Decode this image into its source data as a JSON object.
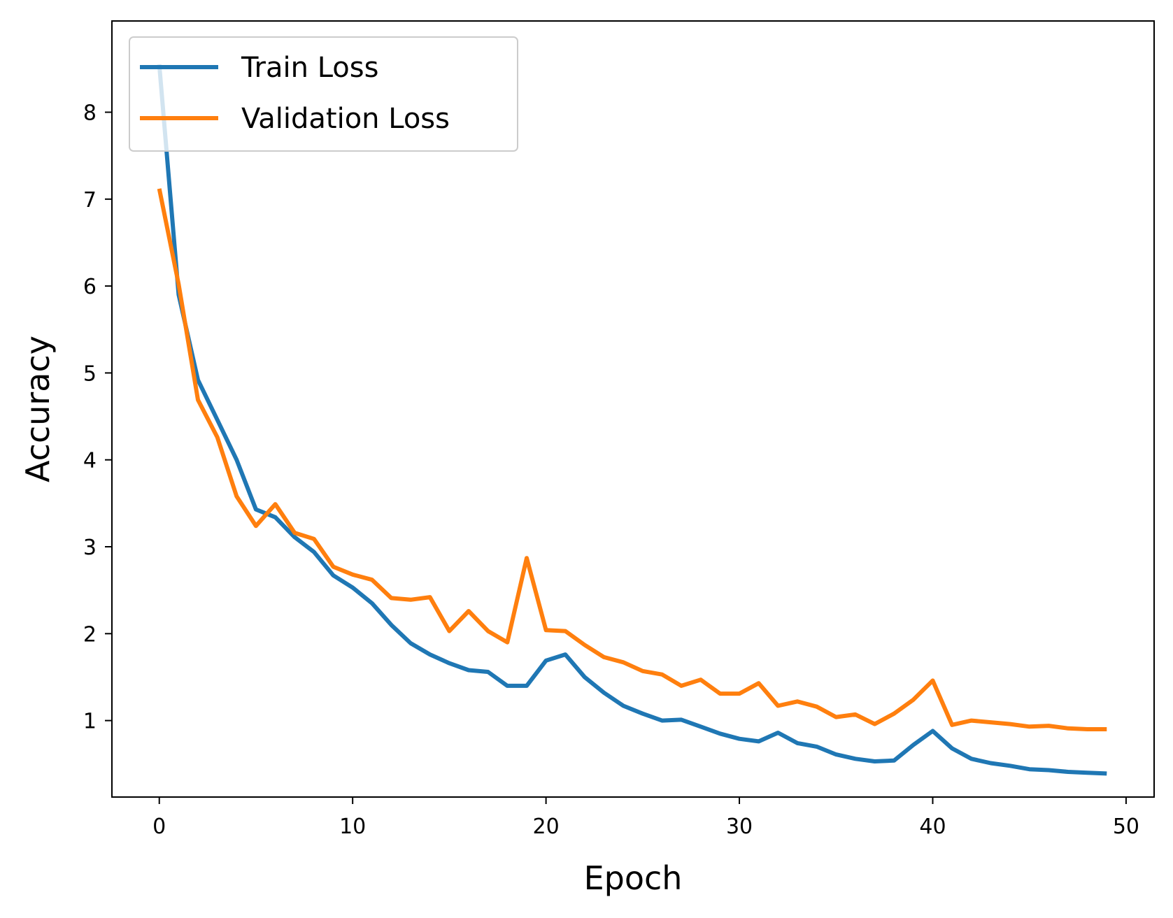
{
  "chart_data": {
    "type": "line",
    "title": "",
    "xlabel": "Epoch",
    "ylabel": "Accuracy",
    "xlim": [
      -2.45,
      51.45
    ],
    "ylim": [
      0.12,
      9.05
    ],
    "xticks": [
      0,
      10,
      20,
      30,
      40,
      50
    ],
    "xtick_labels": [
      "0",
      "10",
      "20",
      "30",
      "40",
      "50"
    ],
    "yticks": [
      1,
      2,
      3,
      4,
      5,
      6,
      7,
      8
    ],
    "ytick_labels": [
      "1",
      "2",
      "3",
      "4",
      "5",
      "6",
      "7",
      "8"
    ],
    "grid": false,
    "legend_position": "upper-left",
    "x": [
      0,
      1,
      2,
      3,
      4,
      5,
      6,
      7,
      8,
      9,
      10,
      11,
      12,
      13,
      14,
      15,
      16,
      17,
      18,
      19,
      20,
      21,
      22,
      23,
      24,
      25,
      26,
      27,
      28,
      29,
      30,
      31,
      32,
      33,
      34,
      35,
      36,
      37,
      38,
      39,
      40,
      41,
      42,
      43,
      44,
      45,
      46,
      47,
      48,
      49
    ],
    "series": [
      {
        "name": "Train Loss",
        "color": "#1f77b4",
        "values": [
          8.55,
          5.9,
          4.92,
          4.46,
          4.0,
          3.43,
          3.34,
          3.11,
          2.94,
          2.67,
          2.53,
          2.35,
          2.1,
          1.89,
          1.76,
          1.66,
          1.58,
          1.56,
          1.4,
          1.4,
          1.69,
          1.76,
          1.5,
          1.32,
          1.17,
          1.08,
          1.0,
          1.01,
          0.93,
          0.85,
          0.79,
          0.76,
          0.86,
          0.74,
          0.7,
          0.61,
          0.56,
          0.53,
          0.54,
          0.72,
          0.88,
          0.68,
          0.56,
          0.51,
          0.48,
          0.44,
          0.43,
          0.41,
          0.4,
          0.39
        ]
      },
      {
        "name": "Validation Loss",
        "color": "#ff7f0e",
        "values": [
          7.12,
          6.02,
          4.69,
          4.26,
          3.58,
          3.24,
          3.49,
          3.16,
          3.09,
          2.77,
          2.68,
          2.62,
          2.41,
          2.39,
          2.42,
          2.03,
          2.26,
          2.03,
          1.9,
          2.87,
          2.04,
          2.03,
          1.87,
          1.73,
          1.67,
          1.57,
          1.53,
          1.4,
          1.47,
          1.31,
          1.31,
          1.43,
          1.17,
          1.22,
          1.16,
          1.04,
          1.07,
          0.96,
          1.08,
          1.24,
          1.46,
          0.95,
          1.0,
          0.98,
          0.96,
          0.93,
          0.94,
          0.91,
          0.9,
          0.9
        ]
      }
    ]
  }
}
